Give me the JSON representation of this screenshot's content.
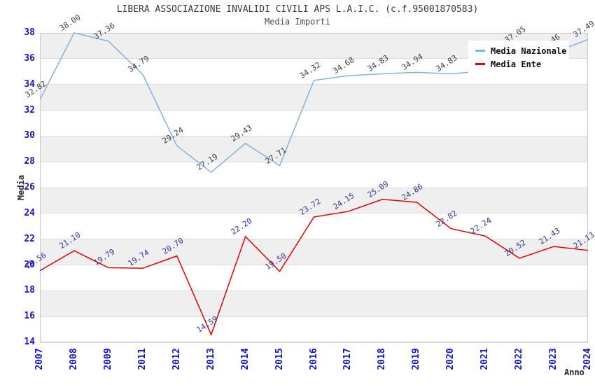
{
  "header": {
    "title": "LIBERA ASSOCIAZIONE INVALIDI CIVILI APS L.A.I.C. (c.f.95001870583)",
    "subtitle": "Media Importi"
  },
  "chart_data": {
    "type": "line",
    "title": "LIBERA ASSOCIAZIONE INVALIDI CIVILI APS L.A.I.C. (c.f.95001870583)",
    "subtitle": "Media Importi",
    "xlabel": "Anno",
    "ylabel": "Media",
    "x": [
      "2007",
      "2008",
      "2009",
      "2011",
      "2012",
      "2013",
      "2014",
      "2015",
      "2016",
      "2017",
      "2018",
      "2019",
      "2020",
      "2021",
      "2022",
      "2023",
      "2024"
    ],
    "series": [
      {
        "name": "Media Nazionale",
        "color": "#7fb2e5",
        "label_color": "#3d3d3d",
        "values": [
          32.82,
          38.0,
          37.36,
          34.79,
          29.24,
          27.19,
          29.43,
          27.71,
          34.32,
          34.68,
          34.83,
          34.94,
          34.83,
          35.05,
          37.05,
          36.46,
          37.49
        ]
      },
      {
        "name": "Media Ente",
        "color": "#ee0000",
        "label_color": "#34349b",
        "values": [
          19.56,
          21.1,
          19.79,
          19.74,
          20.7,
          14.59,
          22.2,
          19.5,
          23.72,
          24.15,
          25.09,
          24.86,
          22.82,
          22.24,
          20.52,
          21.43,
          21.13
        ]
      }
    ],
    "ylim": [
      14,
      38
    ],
    "y_ticks": [
      38,
      36,
      34,
      32,
      30,
      28,
      26,
      24,
      22,
      20,
      18,
      16,
      14
    ],
    "grid": "alternating-horizontal-bands",
    "band_color": "#efefef",
    "gridline_color": "#dcdcdc",
    "tick_label_color": "#1414cc",
    "legend_position": "top-right"
  },
  "legend": {
    "items": [
      {
        "label": "Media Nazionale",
        "color": "#7fb2e5"
      },
      {
        "label": "Media Ente",
        "color": "#ee0000"
      }
    ]
  }
}
